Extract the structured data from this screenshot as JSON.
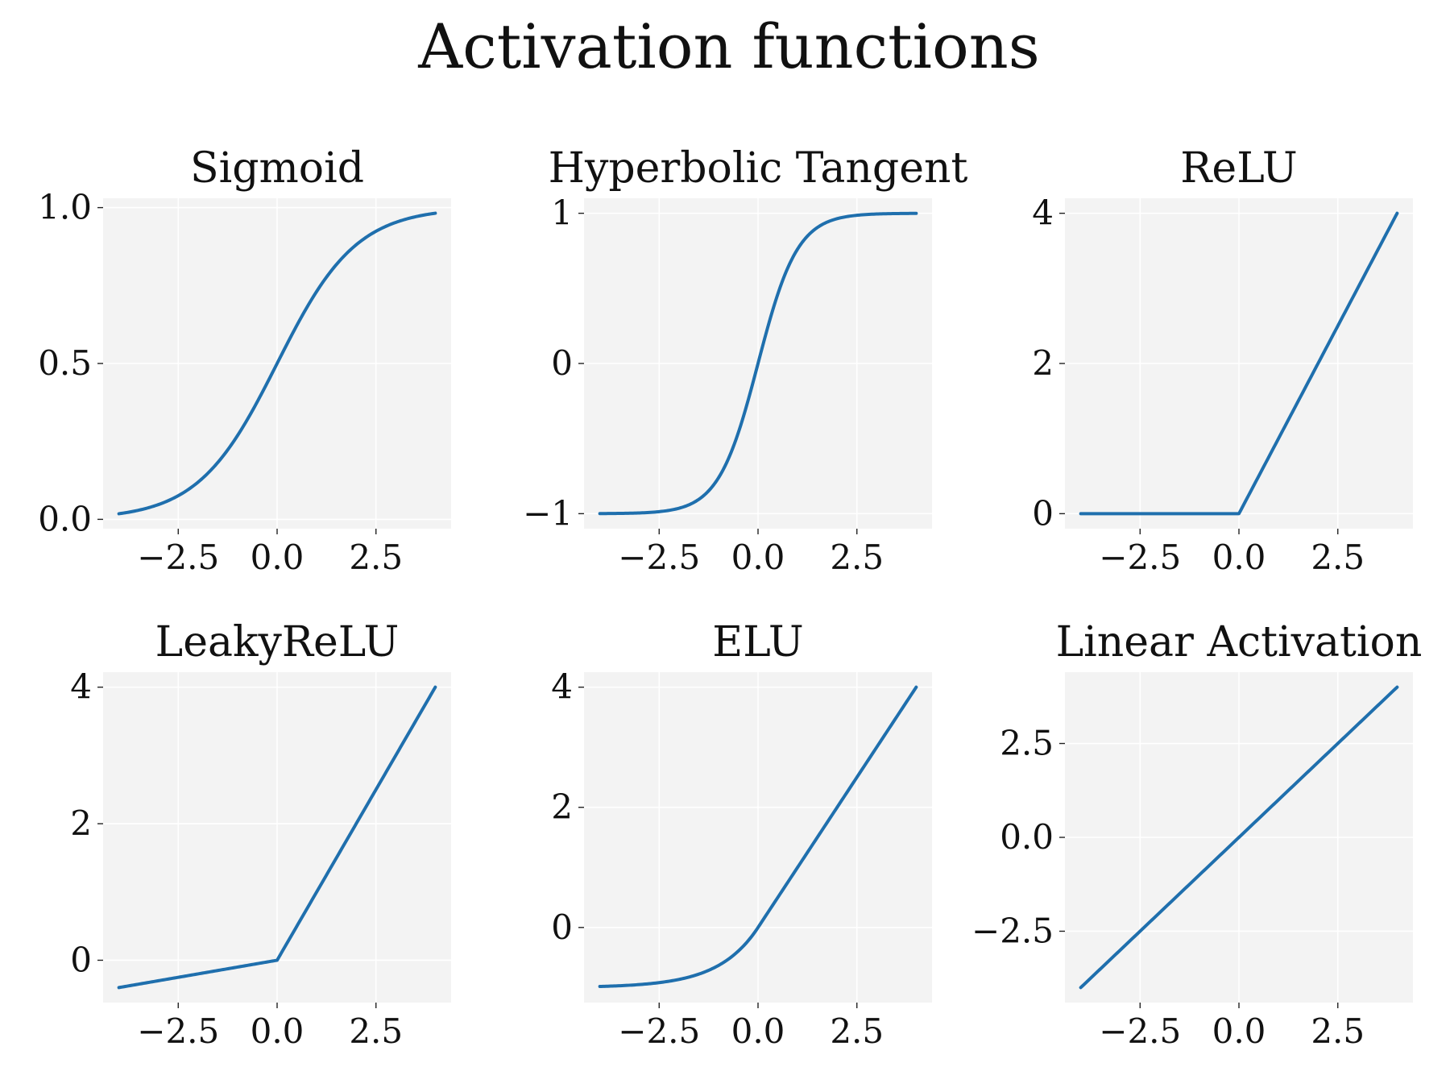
{
  "figure": {
    "title": "Activation functions",
    "line_color": "#1f6fad",
    "plot_background": "#f3f3f3",
    "grid_color": "#ffffff"
  },
  "chart_data": [
    {
      "type": "line",
      "title": "Sigmoid",
      "function": "sigmoid",
      "x_range": [
        -4,
        4
      ],
      "xlim": [
        -4.4,
        4.4
      ],
      "ylim": [
        -0.03,
        1.03
      ],
      "xticks": [
        -2.5,
        0.0,
        2.5
      ],
      "xtick_labels": [
        "−2.5",
        "0.0",
        "2.5"
      ],
      "yticks": [
        0.0,
        0.5,
        1.0
      ],
      "ytick_labels": [
        "0.0",
        "0.5",
        "1.0"
      ],
      "grid": true,
      "x": [
        -4,
        -3,
        -2,
        -1,
        0,
        1,
        2,
        3,
        4
      ],
      "y": [
        0.018,
        0.047,
        0.119,
        0.269,
        0.5,
        0.731,
        0.881,
        0.953,
        0.982
      ]
    },
    {
      "type": "line",
      "title": "Hyperbolic Tangent",
      "function": "tanh",
      "x_range": [
        -4,
        4
      ],
      "xlim": [
        -4.4,
        4.4
      ],
      "ylim": [
        -1.1,
        1.1
      ],
      "xticks": [
        -2.5,
        0.0,
        2.5
      ],
      "xtick_labels": [
        "−2.5",
        "0.0",
        "2.5"
      ],
      "yticks": [
        -1,
        0,
        1
      ],
      "ytick_labels": [
        "−1",
        "0",
        "1"
      ],
      "grid": true,
      "x": [
        -4,
        -3,
        -2,
        -1,
        0,
        1,
        2,
        3,
        4
      ],
      "y": [
        -0.999,
        -0.995,
        -0.964,
        -0.762,
        0,
        0.762,
        0.964,
        0.995,
        0.999
      ]
    },
    {
      "type": "line",
      "title": "ReLU",
      "function": "relu",
      "x_range": [
        -4,
        4
      ],
      "xlim": [
        -4.4,
        4.4
      ],
      "ylim": [
        -0.2,
        4.2
      ],
      "xticks": [
        -2.5,
        0.0,
        2.5
      ],
      "xtick_labels": [
        "−2.5",
        "0.0",
        "2.5"
      ],
      "yticks": [
        0,
        2,
        4
      ],
      "ytick_labels": [
        "0",
        "2",
        "4"
      ],
      "grid": true,
      "x": [
        -4,
        0,
        4
      ],
      "y": [
        0,
        0,
        4
      ]
    },
    {
      "type": "line",
      "title": "LeakyReLU",
      "function": "leaky_relu",
      "x_range": [
        -4,
        4
      ],
      "xlim": [
        -4.4,
        4.4
      ],
      "ylim": [
        -0.62,
        4.22
      ],
      "xticks": [
        -2.5,
        0.0,
        2.5
      ],
      "xtick_labels": [
        "−2.5",
        "0.0",
        "2.5"
      ],
      "yticks": [
        0,
        2,
        4
      ],
      "ytick_labels": [
        "0",
        "2",
        "4"
      ],
      "grid": true,
      "x": [
        -4,
        0,
        4
      ],
      "y": [
        -0.4,
        0,
        4
      ]
    },
    {
      "type": "line",
      "title": "ELU",
      "function": "elu",
      "x_range": [
        -4,
        4
      ],
      "xlim": [
        -4.4,
        4.4
      ],
      "ylim": [
        -1.25,
        4.25
      ],
      "xticks": [
        -2.5,
        0.0,
        2.5
      ],
      "xtick_labels": [
        "−2.5",
        "0.0",
        "2.5"
      ],
      "yticks": [
        0,
        2,
        4
      ],
      "ytick_labels": [
        "0",
        "2",
        "4"
      ],
      "grid": true,
      "x": [
        -4,
        -3,
        -2,
        -1,
        0,
        1,
        2,
        3,
        4
      ],
      "y": [
        -0.982,
        -0.95,
        -0.865,
        -0.632,
        0,
        1,
        2,
        3,
        4
      ]
    },
    {
      "type": "line",
      "title": "Linear Activation",
      "function": "linear",
      "x_range": [
        -4,
        4
      ],
      "xlim": [
        -4.4,
        4.4
      ],
      "ylim": [
        -4.4,
        4.4
      ],
      "xticks": [
        -2.5,
        0.0,
        2.5
      ],
      "xtick_labels": [
        "−2.5",
        "0.0",
        "2.5"
      ],
      "yticks": [
        -2.5,
        0.0,
        2.5
      ],
      "ytick_labels": [
        "−2.5",
        "0.0",
        "2.5"
      ],
      "grid": true,
      "x": [
        -4,
        4
      ],
      "y": [
        -4,
        4
      ]
    }
  ]
}
